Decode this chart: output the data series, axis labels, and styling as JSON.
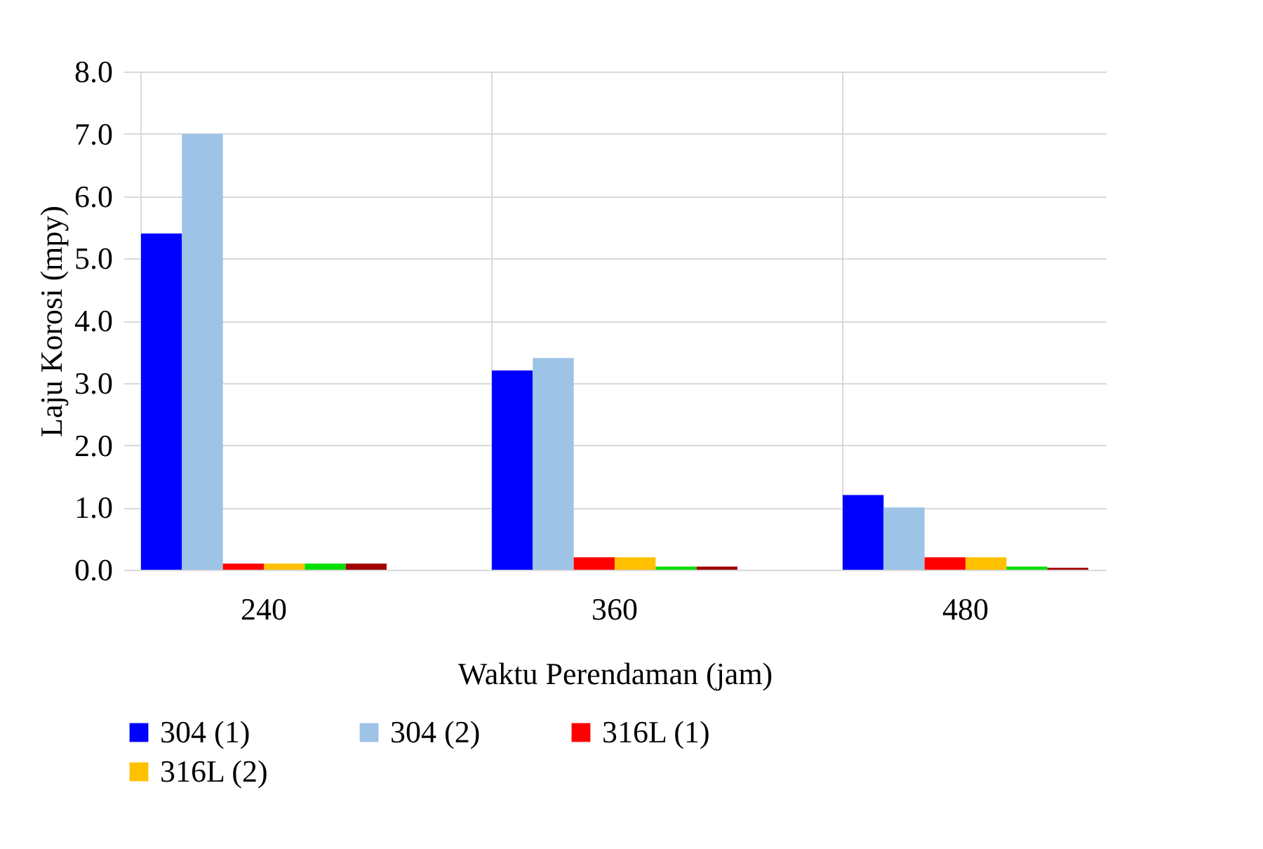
{
  "chart_data": {
    "type": "bar",
    "xlabel": "Waktu Perendaman (jam)",
    "ylabel": "Laju Korosi (mpy)",
    "categories": [
      "240",
      "360",
      "480"
    ],
    "series": [
      {
        "name": "304 (1)",
        "color": "#0000ff",
        "values": [
          5.4,
          3.2,
          1.2
        ]
      },
      {
        "name": "304 (2)",
        "color": "#9dc3e6",
        "values": [
          7.0,
          3.4,
          1.0
        ]
      },
      {
        "name": "316L (1)",
        "color": "#ff0000",
        "values": [
          0.1,
          0.2,
          0.2
        ]
      },
      {
        "name": "316L (2)",
        "color": "#ffc000",
        "values": [
          0.1,
          0.2,
          0.2
        ]
      },
      {
        "color": "#00e000",
        "values": [
          0.1,
          0.05,
          0.05
        ]
      },
      {
        "color": "#a00000",
        "values": [
          0.1,
          0.05,
          0.03
        ]
      }
    ],
    "ylim": [
      0,
      8
    ],
    "yticks": [
      {
        "value": 0,
        "label": "0.0"
      },
      {
        "value": 1,
        "label": "1.0"
      },
      {
        "value": 2,
        "label": "2.0"
      },
      {
        "value": 3,
        "label": "3.0"
      },
      {
        "value": 4,
        "label": "4.0"
      },
      {
        "value": 5,
        "label": "5.0"
      },
      {
        "value": 6,
        "label": "6.0"
      },
      {
        "value": 7,
        "label": "7.0"
      },
      {
        "value": 8,
        "label": "8.0"
      }
    ],
    "grid": true,
    "legend": "bottom"
  }
}
